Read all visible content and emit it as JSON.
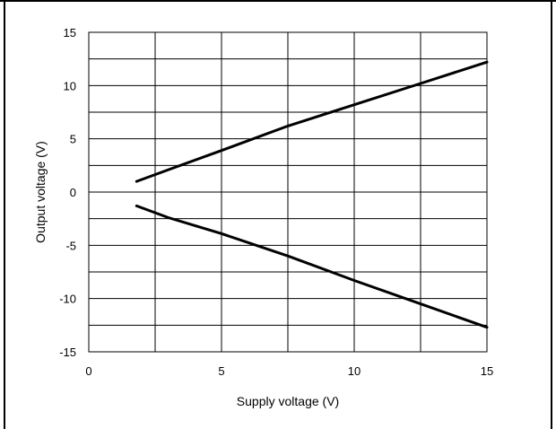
{
  "chart_data": {
    "type": "line",
    "title": "",
    "xlabel": "Supply voltage (V)",
    "ylabel": "Output voltage (V)",
    "xlim": [
      0,
      15
    ],
    "ylim": [
      -15,
      15
    ],
    "x_ticks": [
      "0",
      "5",
      "10",
      "15"
    ],
    "y_ticks": [
      "15",
      "10",
      "5",
      "0",
      "-5",
      "-10",
      "-15"
    ],
    "x_grid_step": 2.5,
    "y_grid_step": 2.5,
    "grid": true,
    "series": [
      {
        "x": [
          1.8,
          3,
          5,
          7.5,
          10,
          12.5,
          15
        ],
        "y": [
          1.0,
          2.1,
          3.9,
          6.2,
          8.2,
          10.2,
          12.2
        ],
        "color": "#000000"
      },
      {
        "x": [
          1.8,
          3,
          5,
          7.5,
          10,
          12.5,
          15
        ],
        "y": [
          -1.3,
          -2.4,
          -3.9,
          -6.0,
          -8.3,
          -10.5,
          -12.7
        ],
        "color": "#000000"
      }
    ]
  }
}
